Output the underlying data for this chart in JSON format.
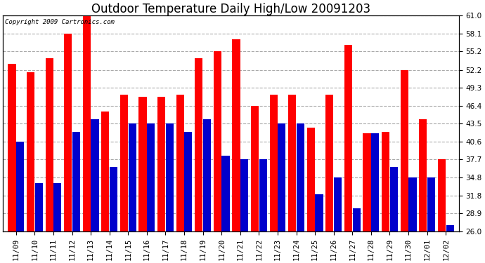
{
  "title": "Outdoor Temperature Daily High/Low 20091203",
  "copyright": "Copyright 2009 Cartronics.com",
  "dates": [
    "11/09",
    "11/10",
    "11/11",
    "11/12",
    "11/13",
    "11/14",
    "11/15",
    "11/16",
    "11/17",
    "11/18",
    "11/19",
    "11/20",
    "11/21",
    "11/22",
    "11/23",
    "11/24",
    "11/25",
    "11/26",
    "11/27",
    "11/28",
    "11/29",
    "11/30",
    "12/01",
    "12/02"
  ],
  "highs": [
    53.2,
    51.8,
    54.1,
    58.1,
    61.0,
    45.5,
    48.2,
    47.8,
    47.8,
    48.2,
    54.1,
    55.2,
    57.2,
    46.4,
    48.2,
    48.2,
    42.8,
    48.2,
    56.3,
    41.9,
    42.1,
    52.2,
    44.2,
    37.7
  ],
  "lows": [
    40.6,
    33.8,
    33.8,
    42.1,
    44.2,
    36.5,
    43.5,
    43.5,
    43.5,
    42.1,
    44.2,
    38.3,
    37.7,
    37.7,
    43.5,
    43.5,
    32.0,
    34.8,
    29.7,
    41.9,
    36.5,
    34.8,
    34.8,
    27.0
  ],
  "bar_color_high": "#ff0000",
  "bar_color_low": "#0000cc",
  "background_color": "#ffffff",
  "grid_color": "#aaaaaa",
  "ylim": [
    26.0,
    61.0
  ],
  "ybase": 26.0,
  "yticks": [
    26.0,
    28.9,
    31.8,
    34.8,
    37.7,
    40.6,
    43.5,
    46.4,
    49.3,
    52.2,
    55.2,
    58.1,
    61.0
  ],
  "title_fontsize": 12,
  "tick_fontsize": 7.5,
  "copyright_fontsize": 6.5
}
